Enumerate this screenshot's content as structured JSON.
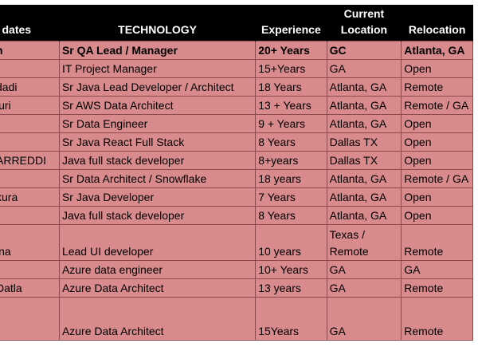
{
  "headers": {
    "candidates": "dates",
    "technology": "TECHNOLOGY",
    "experience": "Experience",
    "current_location_line1": "Current",
    "current_location_line2": "Location",
    "relocation": "Relocation"
  },
  "rows": [
    {
      "name": "n",
      "technology": "Sr QA Lead / Manager",
      "experience": "20+ Years",
      "location": "GC",
      "relocation": "Atlanta, GA"
    },
    {
      "name": "",
      "technology": "IT Project Manager",
      "experience": "15+Years",
      "location": "GA",
      "relocation": "Open"
    },
    {
      "name": "dadi",
      "technology": "Sr Java Lead Developer / Architect",
      "experience": "18 Years",
      "location": "Atlanta, GA",
      "relocation": "Remote"
    },
    {
      "name": "luri",
      "technology": "Sr AWS Data Architect",
      "experience": "13 + Years",
      "location": "Atlanta, GA",
      "relocation": "Remote / GA"
    },
    {
      "name": "",
      "technology": "Sr Data Engineer",
      "experience": "9 + Years",
      "location": "Atlanta, GA",
      "relocation": "Open"
    },
    {
      "name": "",
      "technology": "Sr Java React Full Stack",
      "experience": "8 Years",
      "location": "Dallas TX",
      "relocation": "Open"
    },
    {
      "name": "ARREDDI",
      "technology": "Java full stack developer",
      "experience": "8+years",
      "location": "Dallas TX",
      "relocation": "Open"
    },
    {
      "name": "",
      "technology": "Sr Data Architect / Snowflake",
      "experience": "18 years",
      "location": "Atlanta, GA",
      "relocation": "Remote / GA"
    },
    {
      "name": "kura",
      "technology": "Sr Java Developer",
      "experience": "7 Years",
      "location": "Atlanta, GA",
      "relocation": "Open"
    },
    {
      "name": "",
      "technology": "Java full stack developer",
      "experience": "8 Years",
      "location": "Atlanta, GA",
      "relocation": "Open"
    },
    {
      "name": "ina",
      "technology": "Lead UI developer",
      "experience": "10 years",
      "location_line1": "Texas /",
      "location_line2": "Remote",
      "relocation": "Remote"
    },
    {
      "name": "",
      "technology": "Azure data engineer",
      "experience": "10+ Years",
      "location": "GA",
      "relocation": "GA"
    },
    {
      "name": "Datla",
      "technology": "Azure Data Architect",
      "experience": "13 years",
      "location": "GA",
      "relocation": "Remote"
    },
    {
      "name": "",
      "technology": "Azure Data Architect",
      "experience": "15Years",
      "location": "GA",
      "relocation": "Remote"
    }
  ]
}
